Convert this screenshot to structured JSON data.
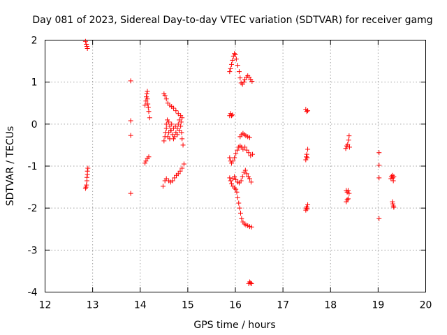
{
  "chart_data": {
    "type": "scatter",
    "title": "Day 081 of 2023, Sidereal Day-to-day VTEC variation (SDTVAR) for receiver gamg",
    "xlabel": "GPS time / hours",
    "ylabel": "SDTVAR / TECUs",
    "xlim": [
      12,
      20
    ],
    "ylim": [
      -4,
      2
    ],
    "xticks": [
      "12",
      "13",
      "14",
      "15",
      "16",
      "17",
      "18",
      "19",
      "20"
    ],
    "yticks": [
      "-4",
      "-3",
      "-2",
      "-1",
      "0",
      "1",
      "2"
    ],
    "grid": true,
    "marker": "plus",
    "color": "#ff0000",
    "series": [
      {
        "name": "SDTVAR",
        "points": [
          [
            12.85,
            1.97
          ],
          [
            12.87,
            1.9
          ],
          [
            12.88,
            1.85
          ],
          [
            12.89,
            1.8
          ],
          [
            12.85,
            -1.53
          ],
          [
            12.86,
            -1.5
          ],
          [
            12.87,
            -1.45
          ],
          [
            12.88,
            -1.35
          ],
          [
            12.88,
            -1.27
          ],
          [
            12.89,
            -1.2
          ],
          [
            12.89,
            -1.12
          ],
          [
            12.9,
            -1.05
          ],
          [
            13.8,
            1.03
          ],
          [
            13.8,
            0.08
          ],
          [
            13.8,
            -0.27
          ],
          [
            13.8,
            -1.65
          ],
          [
            14.1,
            0.45
          ],
          [
            14.12,
            0.55
          ],
          [
            14.13,
            0.65
          ],
          [
            14.14,
            0.72
          ],
          [
            14.15,
            0.78
          ],
          [
            14.15,
            0.6
          ],
          [
            14.16,
            0.48
          ],
          [
            14.17,
            0.4
          ],
          [
            14.18,
            0.3
          ],
          [
            14.2,
            0.15
          ],
          [
            14.1,
            -0.93
          ],
          [
            14.12,
            -0.88
          ],
          [
            14.15,
            -0.82
          ],
          [
            14.18,
            -0.78
          ],
          [
            14.5,
            0.72
          ],
          [
            14.52,
            0.68
          ],
          [
            14.55,
            0.6
          ],
          [
            14.58,
            0.5
          ],
          [
            14.62,
            0.45
          ],
          [
            14.66,
            0.42
          ],
          [
            14.7,
            0.38
          ],
          [
            14.75,
            0.32
          ],
          [
            14.8,
            0.25
          ],
          [
            14.85,
            0.2
          ],
          [
            14.88,
            0.15
          ],
          [
            14.5,
            -0.4
          ],
          [
            14.52,
            -0.3
          ],
          [
            14.53,
            -0.2
          ],
          [
            14.55,
            -0.1
          ],
          [
            14.55,
            0.0
          ],
          [
            14.57,
            0.1
          ],
          [
            14.6,
            0.05
          ],
          [
            14.62,
            -0.05
          ],
          [
            14.65,
            -0.15
          ],
          [
            14.68,
            -0.25
          ],
          [
            14.7,
            -0.35
          ],
          [
            14.72,
            -0.3
          ],
          [
            14.75,
            -0.2
          ],
          [
            14.78,
            -0.1
          ],
          [
            14.8,
            0.0
          ],
          [
            14.82,
            0.1
          ],
          [
            14.85,
            -0.05
          ],
          [
            14.87,
            -0.2
          ],
          [
            14.88,
            -0.35
          ],
          [
            14.9,
            -0.5
          ],
          [
            14.58,
            -0.3
          ],
          [
            14.6,
            -0.2
          ],
          [
            14.62,
            -0.35
          ],
          [
            14.64,
            -0.15
          ],
          [
            14.66,
            0.0
          ],
          [
            14.7,
            -0.1
          ],
          [
            14.74,
            -0.05
          ],
          [
            14.78,
            -0.25
          ],
          [
            14.82,
            -0.15
          ],
          [
            14.86,
            0.05
          ],
          [
            14.48,
            -1.48
          ],
          [
            14.52,
            -1.35
          ],
          [
            14.55,
            -1.3
          ],
          [
            14.6,
            -1.35
          ],
          [
            14.64,
            -1.38
          ],
          [
            14.68,
            -1.35
          ],
          [
            14.72,
            -1.28
          ],
          [
            14.76,
            -1.22
          ],
          [
            14.8,
            -1.18
          ],
          [
            14.84,
            -1.12
          ],
          [
            14.88,
            -1.05
          ],
          [
            14.92,
            -0.95
          ],
          [
            15.88,
            1.25
          ],
          [
            15.9,
            1.32
          ],
          [
            15.92,
            1.42
          ],
          [
            15.94,
            1.52
          ],
          [
            15.96,
            1.62
          ],
          [
            15.98,
            1.68
          ],
          [
            16.0,
            1.65
          ],
          [
            16.02,
            1.55
          ],
          [
            16.05,
            1.4
          ],
          [
            16.08,
            1.25
          ],
          [
            16.1,
            1.1
          ],
          [
            16.12,
            0.98
          ],
          [
            16.15,
            0.95
          ],
          [
            16.18,
            1.0
          ],
          [
            16.2,
            1.06
          ],
          [
            16.23,
            1.12
          ],
          [
            16.26,
            1.15
          ],
          [
            16.29,
            1.12
          ],
          [
            16.32,
            1.06
          ],
          [
            16.35,
            1.02
          ],
          [
            15.88,
            0.2
          ],
          [
            15.9,
            0.25
          ],
          [
            15.92,
            0.2
          ],
          [
            15.94,
            0.22
          ],
          [
            15.88,
            -0.8
          ],
          [
            15.9,
            -0.88
          ],
          [
            15.92,
            -0.93
          ],
          [
            15.95,
            -0.88
          ],
          [
            15.98,
            -0.8
          ],
          [
            16.01,
            -0.7
          ],
          [
            16.04,
            -0.62
          ],
          [
            16.07,
            -0.55
          ],
          [
            16.1,
            -0.52
          ],
          [
            16.13,
            -0.55
          ],
          [
            16.16,
            -0.6
          ],
          [
            16.2,
            -0.55
          ],
          [
            16.24,
            -0.62
          ],
          [
            16.28,
            -0.68
          ],
          [
            16.32,
            -0.75
          ],
          [
            16.36,
            -0.72
          ],
          [
            16.1,
            -0.3
          ],
          [
            16.13,
            -0.25
          ],
          [
            16.16,
            -0.22
          ],
          [
            16.19,
            -0.25
          ],
          [
            16.22,
            -0.28
          ],
          [
            16.26,
            -0.3
          ],
          [
            16.3,
            -0.32
          ],
          [
            15.88,
            -1.28
          ],
          [
            15.9,
            -1.35
          ],
          [
            15.92,
            -1.42
          ],
          [
            15.95,
            -1.48
          ],
          [
            15.98,
            -1.52
          ],
          [
            16.01,
            -1.55
          ],
          [
            16.03,
            -1.62
          ],
          [
            16.05,
            -1.75
          ],
          [
            16.07,
            -1.88
          ],
          [
            16.09,
            -2.0
          ],
          [
            16.11,
            -2.12
          ],
          [
            16.13,
            -2.25
          ],
          [
            16.16,
            -2.33
          ],
          [
            16.19,
            -2.38
          ],
          [
            16.22,
            -2.4
          ],
          [
            16.26,
            -2.42
          ],
          [
            16.3,
            -2.44
          ],
          [
            16.34,
            -2.45
          ],
          [
            15.95,
            -1.3
          ],
          [
            15.98,
            -1.25
          ],
          [
            16.01,
            -1.32
          ],
          [
            16.05,
            -1.38
          ],
          [
            16.08,
            -1.4
          ],
          [
            16.12,
            -1.35
          ],
          [
            16.15,
            -1.25
          ],
          [
            16.18,
            -1.15
          ],
          [
            16.21,
            -1.1
          ],
          [
            16.24,
            -1.18
          ],
          [
            16.27,
            -1.25
          ],
          [
            16.3,
            -1.3
          ],
          [
            16.33,
            -1.38
          ],
          [
            16.28,
            -3.8
          ],
          [
            16.3,
            -3.76
          ],
          [
            16.32,
            -3.78
          ],
          [
            16.34,
            -3.8
          ],
          [
            17.48,
            0.35
          ],
          [
            17.5,
            0.3
          ],
          [
            17.52,
            0.32
          ],
          [
            17.48,
            -0.85
          ],
          [
            17.49,
            -0.78
          ],
          [
            17.5,
            -0.72
          ],
          [
            17.51,
            -0.8
          ],
          [
            17.52,
            -0.6
          ],
          [
            17.48,
            -2.05
          ],
          [
            17.49,
            -2.0
          ],
          [
            17.5,
            -1.97
          ],
          [
            17.51,
            -2.02
          ],
          [
            17.52,
            -1.92
          ],
          [
            18.32,
            -0.58
          ],
          [
            18.34,
            -0.52
          ],
          [
            18.36,
            -0.48
          ],
          [
            18.38,
            -0.38
          ],
          [
            18.39,
            -0.28
          ],
          [
            18.4,
            -0.55
          ],
          [
            18.33,
            -1.58
          ],
          [
            18.35,
            -1.62
          ],
          [
            18.37,
            -1.58
          ],
          [
            18.39,
            -1.65
          ],
          [
            18.33,
            -1.85
          ],
          [
            18.35,
            -1.8
          ],
          [
            18.37,
            -1.78
          ],
          [
            19.02,
            -0.68
          ],
          [
            19.02,
            -0.98
          ],
          [
            19.02,
            -1.28
          ],
          [
            19.02,
            -2.25
          ],
          [
            19.27,
            -1.3
          ],
          [
            19.28,
            -1.25
          ],
          [
            19.3,
            -1.22
          ],
          [
            19.31,
            -1.28
          ],
          [
            19.32,
            -1.35
          ],
          [
            19.33,
            -1.25
          ],
          [
            19.3,
            -1.85
          ],
          [
            19.31,
            -1.9
          ],
          [
            19.32,
            -1.95
          ],
          [
            19.33,
            -1.98
          ]
        ]
      }
    ]
  }
}
